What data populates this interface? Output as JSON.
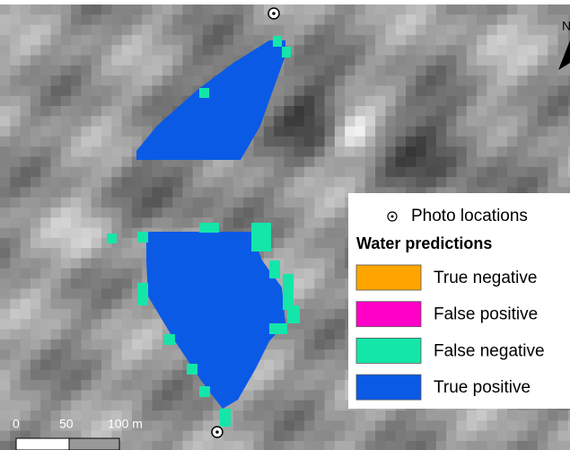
{
  "north_arrow": "N",
  "legend": {
    "photo_locations": "Photo locations",
    "heading": "Water predictions",
    "items": [
      {
        "label": "True negative",
        "color": "#ffa500"
      },
      {
        "label": "False positive",
        "color": "#ff00c8"
      },
      {
        "label": "False negative",
        "color": "#14e6aa"
      },
      {
        "label": "True positive",
        "color": "#0a5ae6"
      }
    ]
  },
  "scale_bar": {
    "labels": [
      "0",
      "50",
      "100 m"
    ]
  }
}
